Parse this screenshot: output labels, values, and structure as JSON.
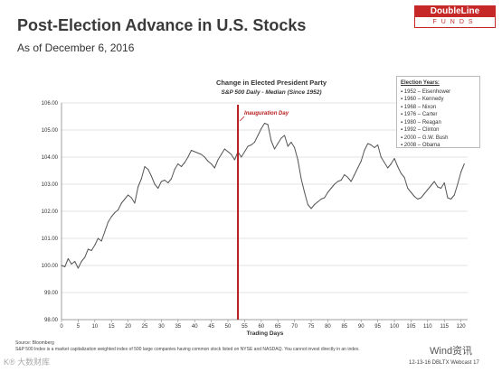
{
  "slide": {
    "title": "Post-Election Advance in U.S. Stocks",
    "subtitle": "As of December 6, 2016"
  },
  "logo": {
    "top": "DoubleLine",
    "bottom": "FUNDS",
    "color": "#c62828"
  },
  "chart_data": {
    "type": "line",
    "title": "Change in Elected President Party",
    "subtitle": "S&P 500 Daily - Median (Since 1952)",
    "xlabel": "Trading Days",
    "ylabel": "",
    "xlim": [
      0,
      122
    ],
    "ylim": [
      98.0,
      106.0
    ],
    "x_ticks": [
      0,
      5,
      10,
      15,
      20,
      25,
      30,
      35,
      40,
      45,
      50,
      55,
      60,
      65,
      70,
      75,
      80,
      85,
      90,
      95,
      100,
      105,
      110,
      115,
      120
    ],
    "y_ticks": [
      "98.00",
      "99.00",
      "100.00",
      "101.00",
      "102.00",
      "103.00",
      "104.00",
      "105.00",
      "106.00"
    ],
    "grid": true,
    "line_color": "#555555",
    "series": [
      {
        "name": "",
        "values": [
          100.0,
          99.95,
          100.25,
          100.05,
          100.15,
          99.9,
          100.15,
          100.3,
          100.6,
          100.55,
          100.75,
          101.0,
          100.9,
          101.25,
          101.6,
          101.8,
          101.95,
          102.05,
          102.3,
          102.45,
          102.6,
          102.5,
          102.3,
          102.9,
          103.2,
          103.65,
          103.55,
          103.3,
          103.0,
          102.85,
          103.1,
          103.15,
          103.05,
          103.2,
          103.55,
          103.75,
          103.65,
          103.8,
          104.0,
          104.25,
          104.2,
          104.15,
          104.1,
          104.0,
          103.85,
          103.75,
          103.6,
          103.9,
          104.1,
          104.3,
          104.2,
          104.1,
          103.9,
          104.2,
          104.0,
          104.2,
          104.4,
          104.45,
          104.55,
          104.8,
          105.05,
          105.25,
          105.2,
          104.6,
          104.3,
          104.5,
          104.7,
          104.8,
          104.4,
          104.55,
          104.35,
          103.9,
          103.2,
          102.7,
          102.25,
          102.1,
          102.25,
          102.35,
          102.45,
          102.5,
          102.7,
          102.85,
          103.0,
          103.1,
          103.15,
          103.35,
          103.25,
          103.1,
          103.35,
          103.6,
          103.85,
          104.25,
          104.5,
          104.45,
          104.35,
          104.45,
          104.0,
          103.8,
          103.6,
          103.75,
          103.95,
          103.65,
          103.4,
          103.25,
          102.85,
          102.7,
          102.55,
          102.45,
          102.5,
          102.65,
          102.8,
          102.95,
          103.1,
          102.9,
          102.85,
          103.05,
          102.5,
          102.45,
          102.6,
          103.0,
          103.45,
          103.75
        ]
      }
    ],
    "inauguration": {
      "x": 53,
      "label": "Inauguration Day",
      "color": "#b71c1c"
    },
    "legend": {
      "title": "Election Years:",
      "placement": "top-right",
      "items": [
        "1952 – Eisenhower",
        "1960 – Kennedy",
        "1968 – Nixon",
        "1976 – Carter",
        "1980 – Reagan",
        "1992 – Clinton",
        "2000 – G.W. Bush",
        "2008 – Obama"
      ]
    }
  },
  "footnote": {
    "source": "Source: Bloomberg",
    "text": "S&P 500 Index is a market capitalization weighted index of 500 large companies having common stock listed on NYSE and NASDAQ. You cannot invest directly in an index."
  },
  "footer": {
    "right": "12-13-16 DBLTX Webcast 17",
    "watermark_right": "Wind资讯",
    "watermark_left": "K® 大数财库"
  }
}
